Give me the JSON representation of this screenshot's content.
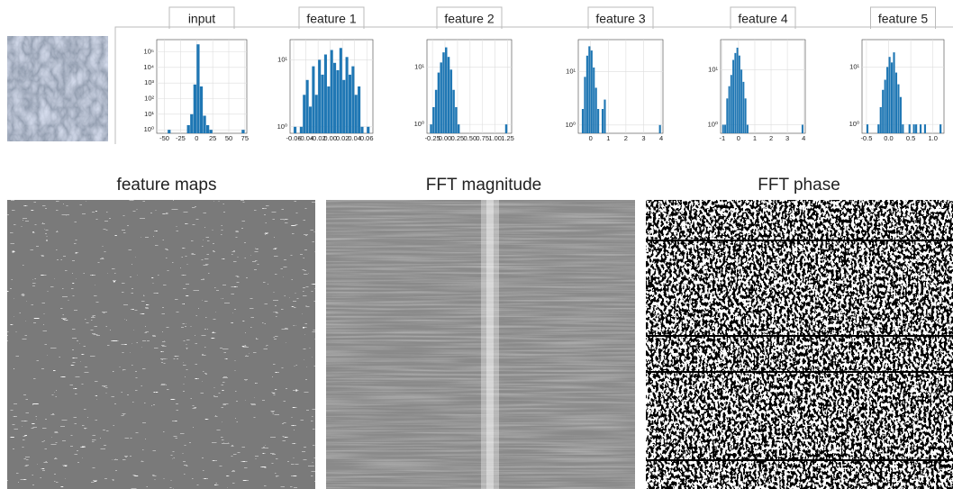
{
  "chart_data": [
    {
      "type": "histogram",
      "title": "input",
      "log_y": true,
      "grid": true,
      "color": "#1f77b4",
      "bins": [
        -45,
        -40,
        -35,
        -30,
        -25,
        -20,
        -15,
        -10,
        -5,
        0,
        5,
        10,
        15,
        20,
        25,
        30,
        35,
        40,
        45,
        50,
        55,
        60,
        65,
        70,
        75
      ],
      "values": [
        1,
        0,
        0,
        0,
        0,
        0,
        2,
        10,
        800,
        300000,
        600,
        8,
        2,
        1,
        0,
        0,
        0,
        0,
        0,
        0,
        0,
        0,
        0,
        1
      ],
      "xlim": [
        -62,
        78
      ],
      "xticks": [
        -50,
        -25,
        0,
        25,
        50,
        75
      ],
      "ylim": [
        0.6,
        600000
      ],
      "yticks": [
        {
          "value": 1,
          "label": "10⁰"
        },
        {
          "value": 10,
          "label": "10¹"
        },
        {
          "value": 100,
          "label": "10²"
        },
        {
          "value": 1000,
          "label": "10³"
        },
        {
          "value": 10000,
          "label": "10⁴"
        },
        {
          "value": 100000,
          "label": "10⁵"
        }
      ]
    },
    {
      "type": "histogram",
      "title": "feature 1",
      "log_y": true,
      "grid": true,
      "color": "#1f77b4",
      "bins": [
        -0.06,
        -0.055,
        -0.05,
        -0.045,
        -0.04,
        -0.035,
        -0.03,
        -0.025,
        -0.02,
        -0.015,
        -0.01,
        -0.005,
        0,
        0.005,
        0.01,
        0.015,
        0.02,
        0.025,
        0.03,
        0.035,
        0.04,
        0.045,
        0.05,
        0.055,
        0.06,
        0.065
      ],
      "values": [
        1,
        0,
        1,
        3,
        5,
        2,
        8,
        3,
        10,
        6,
        12,
        4,
        14,
        9,
        7,
        15,
        5,
        11,
        6,
        8,
        3,
        4,
        1,
        0,
        1
      ],
      "xlim": [
        -0.066,
        0.07
      ],
      "xticks": [
        -0.06,
        -0.04,
        -0.02,
        {
          "value": 0,
          "label": "0.00"
        },
        0.02,
        0.04,
        0.06
      ],
      "ylim": [
        0.8,
        20
      ],
      "yticks": [
        {
          "value": 1,
          "label": "10⁰"
        },
        {
          "value": 10,
          "label": "10¹"
        }
      ]
    },
    {
      "type": "histogram",
      "title": "feature 2",
      "log_y": true,
      "grid": true,
      "color": "#1f77b4",
      "bins": [
        -0.3,
        -0.25,
        -0.2,
        -0.15,
        -0.1,
        -0.05,
        0,
        0.05,
        0.1,
        0.15,
        0.2,
        0.25,
        0.3,
        0.35,
        0.4,
        0.45,
        0.5,
        0.55,
        0.6,
        0.65,
        0.7,
        0.75,
        0.8,
        0.85,
        0.9,
        0.95,
        1,
        1.05,
        1.1,
        1.15,
        1.2,
        1.25,
        1.3
      ],
      "values": [
        1,
        2,
        4,
        8,
        12,
        18,
        22,
        15,
        9,
        4,
        2,
        1,
        0,
        0,
        0,
        0,
        0,
        0,
        0,
        0,
        0,
        0,
        0,
        0,
        0,
        0,
        0,
        0,
        0,
        0,
        1,
        0
      ],
      "xlim": [
        -0.36,
        1.33
      ],
      "xticks": [
        -0.25,
        {
          "value": 0,
          "label": "0.00"
        },
        0.25,
        {
          "value": 0.5,
          "label": "0.50"
        },
        0.75,
        {
          "value": 1,
          "label": "1.00"
        },
        1.25
      ],
      "ylim": [
        0.7,
        30
      ],
      "yticks": [
        {
          "value": 1,
          "label": "10⁰"
        },
        {
          "value": 10,
          "label": "10¹"
        }
      ]
    },
    {
      "type": "histogram",
      "title": "feature 3",
      "log_y": true,
      "grid": true,
      "color": "#1f77b4",
      "bins": [
        -0.5,
        -0.375,
        -0.25,
        -0.125,
        0,
        0.125,
        0.25,
        0.375,
        0.5,
        0.625,
        0.75,
        0.875,
        1,
        1.125,
        1.25,
        1.375,
        1.5,
        1.625,
        1.75,
        1.875,
        2,
        2.125,
        2.25,
        2.375,
        2.5,
        2.625,
        2.75,
        2.875,
        3,
        3.125,
        3.25,
        3.375,
        3.5,
        3.625,
        3.75,
        3.875,
        4
      ],
      "values": [
        2,
        8,
        20,
        30,
        25,
        12,
        5,
        2,
        0,
        2,
        3,
        0,
        0,
        0,
        0,
        0,
        0,
        0,
        0,
        0,
        0,
        0,
        0,
        0,
        0,
        0,
        0,
        0,
        0,
        0,
        0,
        0,
        0,
        0,
        0,
        1
      ],
      "xlim": [
        -0.7,
        4.1
      ],
      "xticks": [
        0,
        1,
        2,
        3,
        4
      ],
      "ylim": [
        0.7,
        40
      ],
      "yticks": [
        {
          "value": 1,
          "label": "10⁰"
        },
        {
          "value": 10,
          "label": "10¹"
        }
      ]
    },
    {
      "type": "histogram",
      "title": "feature 4",
      "log_y": true,
      "grid": true,
      "color": "#1f77b4",
      "bins": [
        -1,
        -0.875,
        -0.75,
        -0.625,
        -0.5,
        -0.375,
        -0.25,
        -0.125,
        0,
        0.125,
        0.25,
        0.375,
        0.5,
        0.625,
        0.75,
        0.875,
        1,
        1.125,
        1.25,
        1.375,
        1.5,
        1.625,
        1.75,
        1.875,
        2,
        2.125,
        2.25,
        2.375,
        2.5,
        2.625,
        2.75,
        2.875,
        3,
        3.125,
        3.25,
        3.375,
        3.5,
        3.625,
        3.75,
        3.875,
        4
      ],
      "values": [
        1,
        1,
        3,
        5,
        8,
        15,
        20,
        25,
        18,
        10,
        6,
        3,
        1,
        0,
        0,
        0,
        0,
        0,
        0,
        0,
        0,
        0,
        0,
        0,
        0,
        0,
        0,
        0,
        0,
        0,
        0,
        0,
        0,
        0,
        0,
        0,
        0,
        0,
        0,
        1
      ],
      "xlim": [
        -1.1,
        4.1
      ],
      "xticks": [
        -1,
        0,
        1,
        2,
        3,
        4
      ],
      "ylim": [
        0.7,
        35
      ],
      "yticks": [
        {
          "value": 1,
          "label": "10⁰"
        },
        {
          "value": 10,
          "label": "10¹"
        }
      ]
    },
    {
      "type": "histogram",
      "title": "feature 5",
      "log_y": true,
      "grid": true,
      "color": "#1f77b4",
      "bins": [
        -0.5,
        -0.45,
        -0.4,
        -0.35,
        -0.3,
        -0.25,
        -0.2,
        -0.15,
        -0.1,
        -0.05,
        0,
        0.05,
        0.1,
        0.15,
        0.2,
        0.25,
        0.3,
        0.35,
        0.4,
        0.45,
        0.5,
        0.55,
        0.6,
        0.65,
        0.7,
        0.75,
        0.8,
        0.85,
        0.9,
        0.95,
        1,
        1.05,
        1.1,
        1.15,
        1.2
      ],
      "values": [
        1,
        0,
        0,
        0,
        0,
        1,
        2,
        4,
        6,
        10,
        15,
        12,
        18,
        8,
        5,
        3,
        1,
        0,
        0,
        1,
        0,
        1,
        1,
        0,
        1,
        0,
        1,
        0,
        0,
        0,
        0,
        0,
        0,
        1
      ],
      "xlim": [
        -0.6,
        1.25
      ],
      "xticks": [
        -0.5,
        {
          "value": 0,
          "label": "0.0"
        },
        0.5,
        {
          "value": 1,
          "label": "1.0"
        }
      ],
      "ylim": [
        0.7,
        30
      ],
      "yticks": [
        {
          "value": 1,
          "label": "10⁰"
        },
        {
          "value": 10,
          "label": "10¹"
        }
      ]
    }
  ],
  "image_panels": [
    {
      "title": "feature maps"
    },
    {
      "title": "FFT magnitude"
    },
    {
      "title": "FFT phase"
    }
  ]
}
